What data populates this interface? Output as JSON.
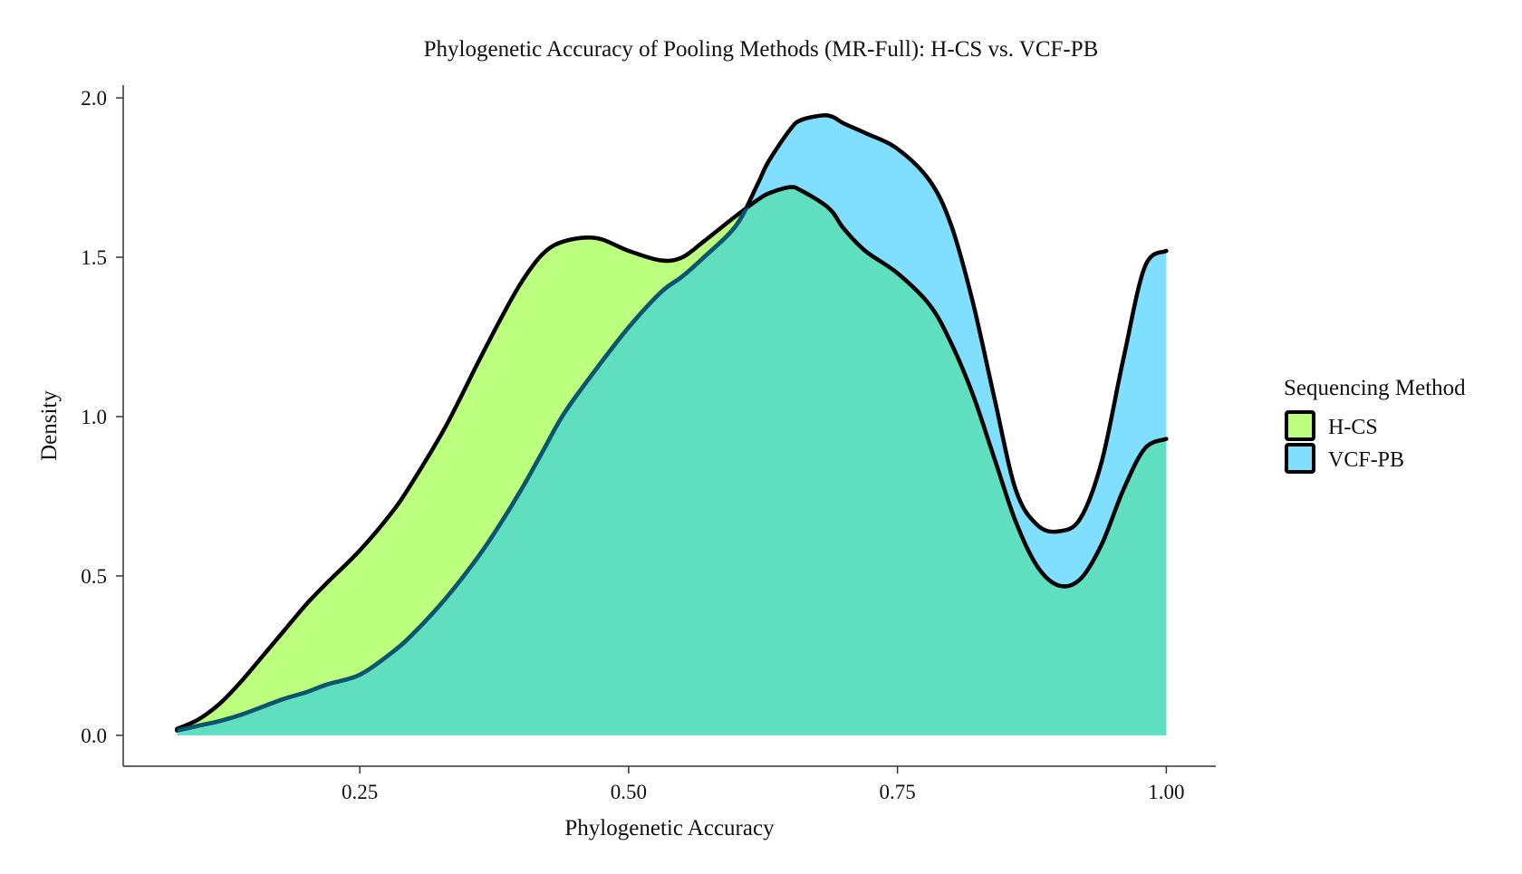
{
  "chart_data": {
    "type": "area",
    "subtype": "stacked-density",
    "title": "Phylogenetic Accuracy of Pooling Methods (MR-Full): H-CS vs. VCF-PB",
    "xlabel": "Phylogenetic Accuracy",
    "ylabel": "Density",
    "xlim": [
      0.03,
      1.046
    ],
    "ylim": [
      -0.097,
      2.04
    ],
    "xticks": [
      0.25,
      0.5,
      0.75,
      1.0
    ],
    "xtick_labels": [
      "0.25",
      "0.50",
      "0.75",
      "1.00"
    ],
    "yticks": [
      0.0,
      0.5,
      1.0,
      1.5,
      2.0
    ],
    "ytick_labels": [
      "0.0",
      "0.5",
      "1.0",
      "1.5",
      "2.0"
    ],
    "grid": false,
    "legend": {
      "title": "Sequencing Method",
      "position": "right"
    },
    "colors": {
      "H-CS": "#bcfe7e",
      "VCF-PB": "#80deff",
      "overlap": "#5fdec0",
      "outline_top": "#000000",
      "outline_inner": "#0a5570"
    },
    "x": [
      0.08,
      0.1,
      0.12,
      0.14,
      0.16,
      0.18,
      0.2,
      0.22,
      0.25,
      0.28,
      0.3,
      0.33,
      0.36,
      0.38,
      0.4,
      0.42,
      0.44,
      0.47,
      0.5,
      0.53,
      0.55,
      0.57,
      0.6,
      0.62,
      0.63,
      0.65,
      0.66,
      0.68,
      0.69,
      0.7,
      0.72,
      0.75,
      0.78,
      0.8,
      0.82,
      0.84,
      0.86,
      0.88,
      0.9,
      0.92,
      0.94,
      0.96,
      0.98,
      1.0
    ],
    "series": [
      {
        "name": "H-CS",
        "values": [
          0.02,
          0.05,
          0.1,
          0.17,
          0.25,
          0.33,
          0.41,
          0.48,
          0.58,
          0.7,
          0.8,
          0.97,
          1.17,
          1.3,
          1.42,
          1.51,
          1.55,
          1.56,
          1.52,
          1.49,
          1.5,
          1.55,
          1.63,
          1.68,
          1.7,
          1.72,
          1.71,
          1.67,
          1.64,
          1.59,
          1.52,
          1.45,
          1.35,
          1.23,
          1.07,
          0.87,
          0.67,
          0.53,
          0.47,
          0.49,
          0.6,
          0.77,
          0.9,
          0.93
        ]
      },
      {
        "name": "VCF-PB",
        "values": [
          0.015,
          0.03,
          0.045,
          0.065,
          0.09,
          0.115,
          0.135,
          0.16,
          0.19,
          0.26,
          0.32,
          0.43,
          0.56,
          0.66,
          0.77,
          0.89,
          1.01,
          1.15,
          1.28,
          1.39,
          1.44,
          1.5,
          1.6,
          1.73,
          1.8,
          1.9,
          1.93,
          1.945,
          1.94,
          1.92,
          1.89,
          1.84,
          1.74,
          1.6,
          1.36,
          1.06,
          0.77,
          0.66,
          0.64,
          0.68,
          0.86,
          1.18,
          1.47,
          1.52
        ]
      }
    ]
  }
}
